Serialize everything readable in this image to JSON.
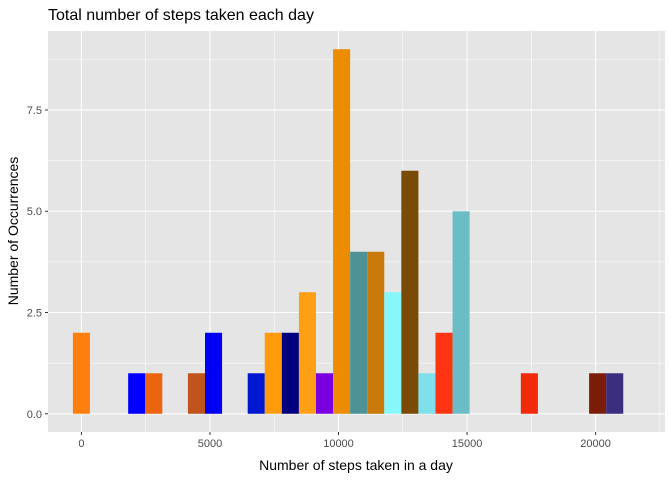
{
  "chart_data": {
    "type": "bar",
    "title": "Total number of steps taken each day",
    "xlabel": "Number of steps taken in a day",
    "ylabel": "Number of Occurrences",
    "xlim": [
      -1300,
      22700
    ],
    "ylim": [
      -0.45,
      9.45
    ],
    "bin_width": 664,
    "x_ticks": [
      0,
      5000,
      10000,
      15000,
      20000
    ],
    "x_tick_labels": [
      "0",
      "5000",
      "10000",
      "15000",
      "20000"
    ],
    "y_ticks": [
      0,
      2.5,
      5,
      7.5
    ],
    "y_tick_labels": [
      "0.0",
      "2.5",
      "5.0",
      "7.5"
    ],
    "grid": true,
    "legend": "none",
    "panel_background": "#e5e5e5",
    "grid_color": "#ffffff",
    "bins": [
      {
        "x": 0,
        "count": 2,
        "color": "#ff7f0e"
      },
      {
        "x": 2150,
        "count": 1,
        "color": "#0000ff"
      },
      {
        "x": 2814,
        "count": 1,
        "color": "#ec6410"
      },
      {
        "x": 4475,
        "count": 1,
        "color": "#c0541c"
      },
      {
        "x": 5139,
        "count": 2,
        "color": "#0000f5"
      },
      {
        "x": 6800,
        "count": 1,
        "color": "#0018d0"
      },
      {
        "x": 7464,
        "count": 2,
        "color": "#ff9a0a"
      },
      {
        "x": 8128,
        "count": 2,
        "color": "#00007e"
      },
      {
        "x": 8792,
        "count": 3,
        "color": "#ff9f13"
      },
      {
        "x": 9456,
        "count": 1,
        "color": "#7a00e0"
      },
      {
        "x": 10120,
        "count": 9,
        "color": "#ec8c00"
      },
      {
        "x": 10784,
        "count": 4,
        "color": "#4f9296"
      },
      {
        "x": 11448,
        "count": 4,
        "color": "#c97a0b"
      },
      {
        "x": 12112,
        "count": 3,
        "color": "#88f7fb"
      },
      {
        "x": 12776,
        "count": 6,
        "color": "#7a4b06"
      },
      {
        "x": 13440,
        "count": 1,
        "color": "#7fe0eb"
      },
      {
        "x": 14104,
        "count": 2,
        "color": "#ff3412"
      },
      {
        "x": 14768,
        "count": 5,
        "color": "#6bbdc5"
      },
      {
        "x": 17424,
        "count": 1,
        "color": "#f02a0b"
      },
      {
        "x": 20080,
        "count": 1,
        "color": "#7a1c07"
      },
      {
        "x": 20744,
        "count": 1,
        "color": "#3b2e7f"
      }
    ]
  }
}
